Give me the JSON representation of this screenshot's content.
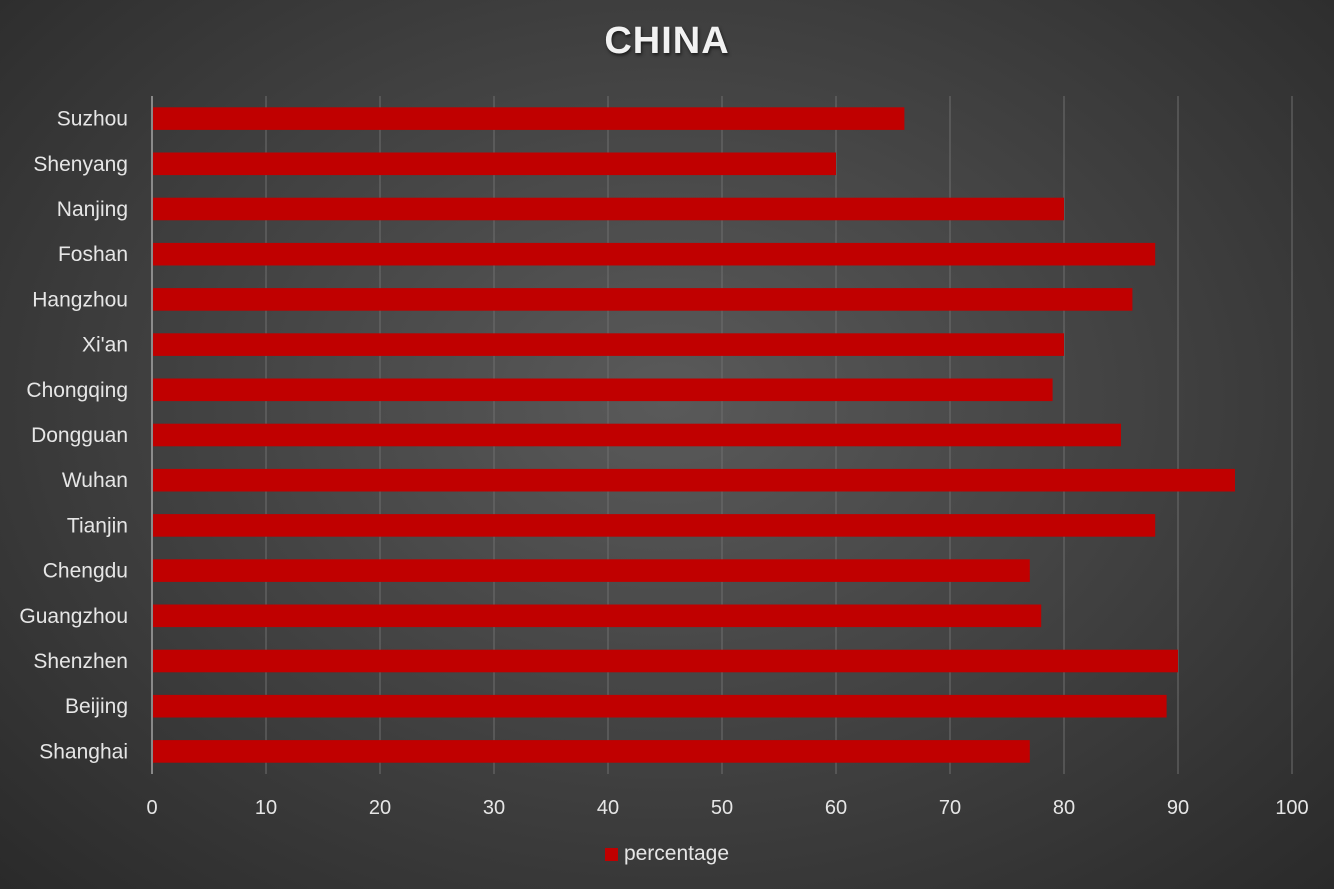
{
  "chart_data": {
    "type": "bar",
    "orientation": "horizontal",
    "title": "CHINA",
    "xlabel": "",
    "ylabel": "",
    "categories": [
      "Suzhou",
      "Shenyang",
      "Nanjing",
      "Foshan",
      "Hangzhou",
      "Xi'an",
      "Chongqing",
      "Dongguan",
      "Wuhan",
      "Tianjin",
      "Chengdu",
      "Guangzhou",
      "Shenzhen",
      "Beijing",
      "Shanghai"
    ],
    "series": [
      {
        "name": "percentage",
        "color": "#c00000",
        "values": [
          66,
          60,
          80,
          88,
          86,
          80,
          79,
          85,
          95,
          88,
          77,
          78,
          90,
          89,
          77
        ]
      }
    ],
    "xlim": [
      0,
      100
    ],
    "x_ticks": [
      0,
      10,
      20,
      30,
      40,
      50,
      60,
      70,
      80,
      90,
      100
    ],
    "grid": true,
    "legend_position": "bottom"
  }
}
